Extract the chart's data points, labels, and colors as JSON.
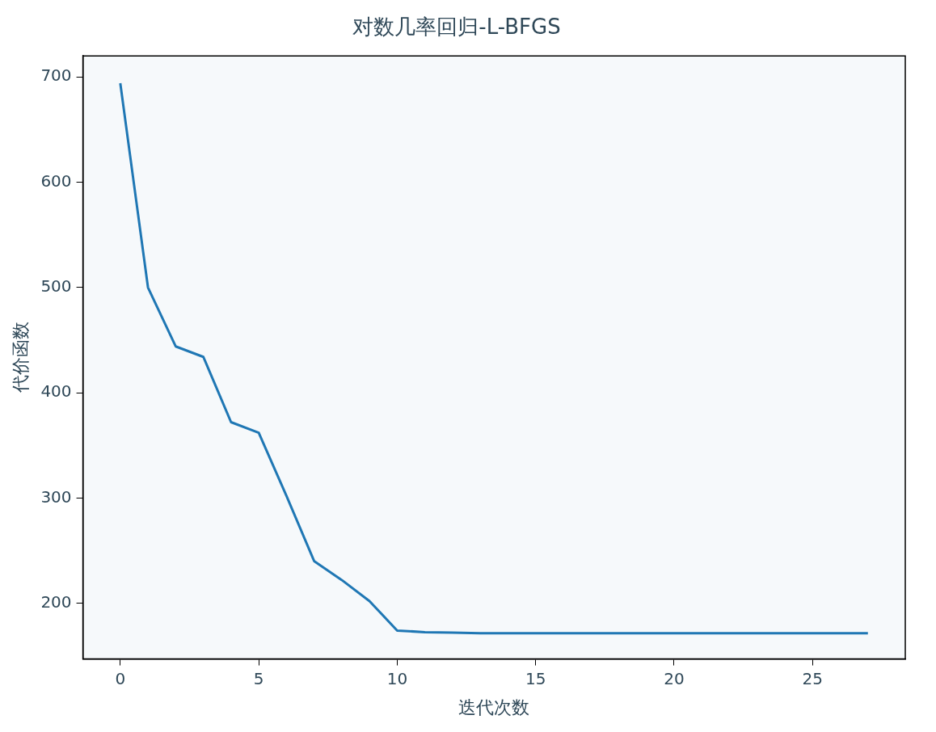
{
  "chart_data": {
    "type": "line",
    "title": "对数几率回归-L-BFGS",
    "xlabel": "迭代次数",
    "ylabel": "代价函数",
    "x": [
      0,
      1,
      2,
      3,
      4,
      5,
      6,
      7,
      8,
      9,
      10,
      11,
      12,
      13,
      14,
      15,
      16,
      17,
      18,
      19,
      20,
      21,
      22,
      23,
      24,
      25,
      26,
      27
    ],
    "series": [
      {
        "color": "#1f77b4",
        "values": [
          694,
          500,
          444,
          434,
          372,
          362,
          302,
          240,
          222,
          202,
          174,
          172.5,
          172,
          171.5,
          171.5,
          171.5,
          171.5,
          171.5,
          171.5,
          171.5,
          171.5,
          171.5,
          171.5,
          171.5,
          171.5,
          171.5,
          171.5,
          171.5
        ]
      }
    ],
    "xlim": [
      -1.35,
      28.35
    ],
    "xticks": [
      0,
      5,
      10,
      15,
      20,
      25
    ],
    "ylim": [
      147,
      720
    ],
    "yticks": [
      200,
      300,
      400,
      500,
      600,
      700
    ],
    "grid": false,
    "legend": false,
    "marker": "none",
    "line_style": "solid"
  }
}
